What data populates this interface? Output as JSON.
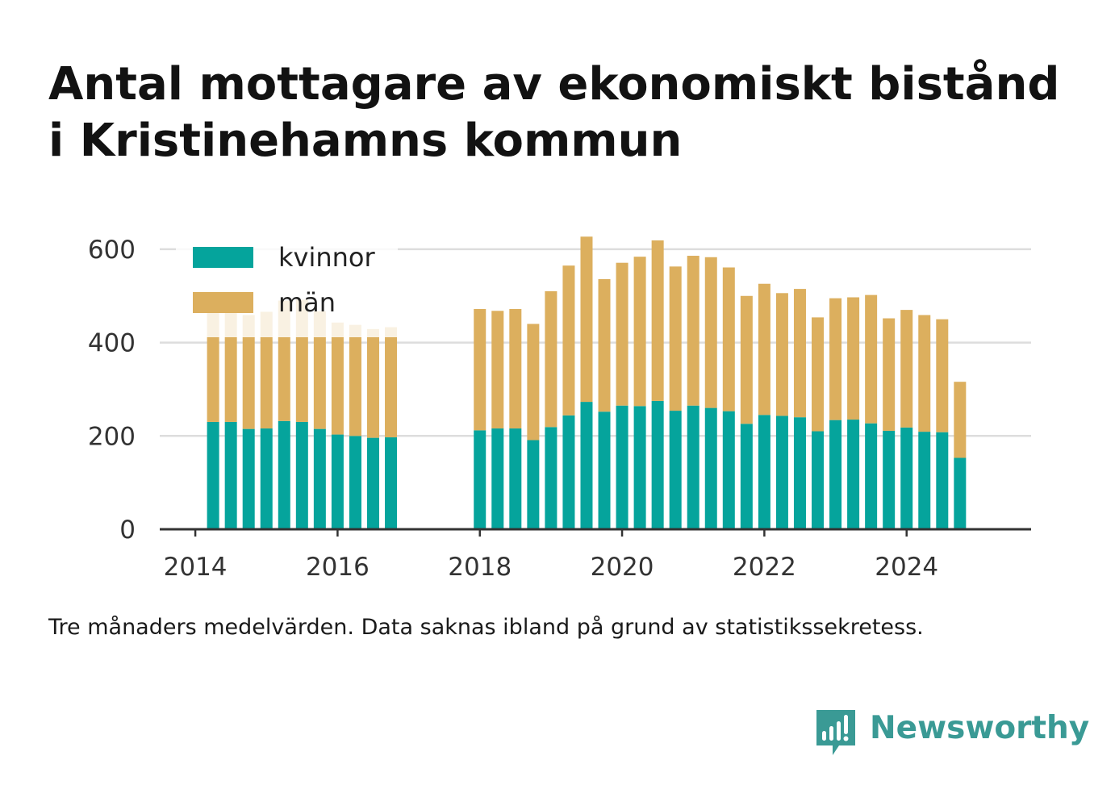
{
  "title_lines": [
    "Antal mottagare av ekonomiskt bistånd",
    "i Kristinehamns kommun"
  ],
  "footnote": "Tre månaders medelvärden. Data saknas ibland på grund av statistikssekretess.",
  "brand": {
    "name": "Newsworthy",
    "icon": "newsworthy-logo-icon",
    "color": "#3a9a95"
  },
  "colors": {
    "kvinnor": "#05a49c",
    "man": "#dcaf5e",
    "grid": "#dddddd",
    "axis": "#333333"
  },
  "chart_data": {
    "type": "bar",
    "stacked": true,
    "title": "Antal mottagare av ekonomiskt bistånd i Kristinehamns kommun",
    "xlabel": "",
    "ylabel": "",
    "ylim": [
      0,
      650
    ],
    "yticks": [
      0,
      200,
      400,
      600
    ],
    "xlim": [
      2013.5,
      2025.75
    ],
    "xticks": [
      2014,
      2016,
      2018,
      2020,
      2022,
      2024
    ],
    "grid": true,
    "legend_position": "top-left",
    "x": [
      2014.25,
      2014.5,
      2014.75,
      2015.0,
      2015.25,
      2015.5,
      2015.75,
      2016.0,
      2016.25,
      2016.5,
      2016.75,
      2018.0,
      2018.25,
      2018.5,
      2018.75,
      2019.0,
      2019.25,
      2019.5,
      2019.75,
      2020.0,
      2020.25,
      2020.5,
      2020.75,
      2021.0,
      2021.25,
      2021.5,
      2021.75,
      2022.0,
      2022.25,
      2022.5,
      2022.75,
      2023.0,
      2023.25,
      2023.5,
      2023.75,
      2024.0,
      2024.25,
      2024.5,
      2024.75
    ],
    "series": [
      {
        "name": "kvinnor",
        "color": "#05a49c",
        "values": [
          230,
          230,
          215,
          216,
          232,
          230,
          215,
          203,
          200,
          196,
          197,
          212,
          216,
          216,
          191,
          219,
          244,
          273,
          252,
          265,
          264,
          275,
          254,
          265,
          260,
          253,
          226,
          245,
          243,
          240,
          210,
          234,
          235,
          227,
          211,
          218,
          209,
          208,
          153
        ]
      },
      {
        "name": "män",
        "color": "#dcaf5e",
        "values": [
          260,
          260,
          244,
          250,
          258,
          262,
          252,
          240,
          238,
          233,
          236,
          260,
          252,
          256,
          249,
          291,
          321,
          354,
          284,
          306,
          320,
          344,
          309,
          321,
          323,
          308,
          274,
          281,
          263,
          275,
          244,
          261,
          262,
          275,
          241,
          252,
          250,
          242,
          163
        ]
      }
    ]
  }
}
